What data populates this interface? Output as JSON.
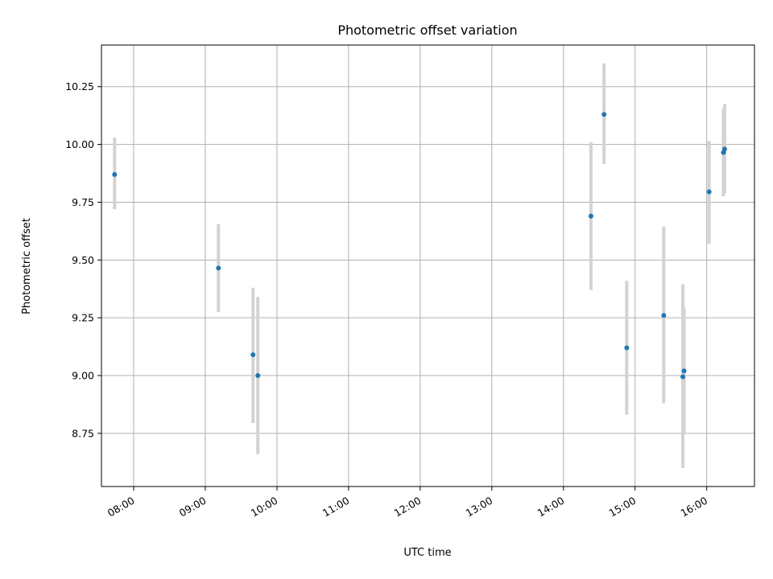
{
  "chart_data": {
    "type": "scatter",
    "title": "Photometric offset variation",
    "xlabel": "UTC time",
    "ylabel": "Photometric offset",
    "xlim": [
      "07:33",
      "16:40"
    ],
    "ylim": [
      8.52,
      10.43
    ],
    "xticks": [
      "08:00",
      "09:00",
      "10:00",
      "11:00",
      "12:00",
      "13:00",
      "14:00",
      "15:00",
      "16:00"
    ],
    "yticks": [
      8.75,
      9.0,
      9.25,
      9.5,
      9.75,
      10.0,
      10.25
    ],
    "ytick_labels": [
      "8.75",
      "9.00",
      "9.25",
      "9.50",
      "9.75",
      "10.00",
      "10.25"
    ],
    "grid": true,
    "colors": {
      "points": "#1f77b4",
      "errorbars": "#d3d3d3",
      "grid": "#b0b0b0"
    },
    "points": [
      {
        "x": "07:44",
        "y": 9.87,
        "yerr_low": 9.72,
        "yerr_high": 10.03
      },
      {
        "x": "09:11",
        "y": 9.465,
        "yerr_low": 9.275,
        "yerr_high": 9.655
      },
      {
        "x": "09:40",
        "y": 9.09,
        "yerr_low": 8.795,
        "yerr_high": 9.38
      },
      {
        "x": "09:44",
        "y": 9.0,
        "yerr_low": 8.66,
        "yerr_high": 9.34
      },
      {
        "x": "14:23",
        "y": 9.69,
        "yerr_low": 9.37,
        "yerr_high": 10.01
      },
      {
        "x": "14:34",
        "y": 10.13,
        "yerr_low": 9.915,
        "yerr_high": 10.35
      },
      {
        "x": "14:53",
        "y": 9.12,
        "yerr_low": 8.83,
        "yerr_high": 9.41
      },
      {
        "x": "15:24",
        "y": 9.26,
        "yerr_low": 8.88,
        "yerr_high": 9.645
      },
      {
        "x": "15:40",
        "y": 8.995,
        "yerr_low": 8.6,
        "yerr_high": 9.395
      },
      {
        "x": "15:41",
        "y": 9.02,
        "yerr_low": 8.75,
        "yerr_high": 9.295
      },
      {
        "x": "16:02",
        "y": 9.795,
        "yerr_low": 9.57,
        "yerr_high": 10.015
      },
      {
        "x": "16:14",
        "y": 9.965,
        "yerr_low": 9.775,
        "yerr_high": 10.155
      },
      {
        "x": "16:15",
        "y": 9.98,
        "yerr_low": 9.79,
        "yerr_high": 10.175
      }
    ]
  }
}
